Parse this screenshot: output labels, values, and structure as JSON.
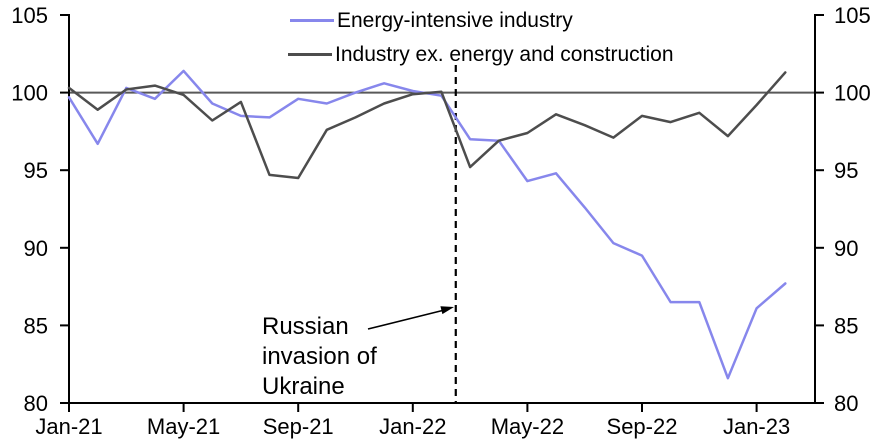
{
  "chart_data": {
    "type": "line",
    "title": "",
    "categories": [
      "Jan-21",
      "Feb-21",
      "Mar-21",
      "Apr-21",
      "May-21",
      "Jun-21",
      "Jul-21",
      "Aug-21",
      "Sep-21",
      "Oct-21",
      "Nov-21",
      "Dec-21",
      "Jan-22",
      "Feb-22",
      "Mar-22",
      "Apr-22",
      "May-22",
      "Jun-22",
      "Jul-22",
      "Aug-22",
      "Sep-22",
      "Oct-22",
      "Nov-22",
      "Dec-22",
      "Jan-23",
      "Feb-23"
    ],
    "series": [
      {
        "name": "Energy-intensive industry",
        "color": "#8787ec",
        "values": [
          99.7,
          96.7,
          100.3,
          99.6,
          101.4,
          99.3,
          98.5,
          98.4,
          99.6,
          99.3,
          100.0,
          100.6,
          100.1,
          99.8,
          97.0,
          96.9,
          94.3,
          94.8,
          92.6,
          90.3,
          89.5,
          86.5,
          86.5,
          81.6,
          86.1,
          87.7
        ]
      },
      {
        "name": "Industry ex. energy and construction",
        "color": "#4d4d4d",
        "values": [
          100.3,
          98.9,
          100.2,
          100.45,
          99.85,
          98.2,
          99.4,
          94.7,
          94.5,
          97.6,
          98.4,
          99.3,
          99.9,
          100.05,
          95.2,
          96.9,
          97.4,
          98.6,
          97.9,
          97.1,
          98.5,
          98.1,
          98.7,
          97.2,
          99.2,
          101.3
        ]
      }
    ],
    "ylim": [
      80,
      105
    ],
    "y_ticks": [
      "80",
      "85",
      "90",
      "95",
      "100",
      "105"
    ],
    "y_tick_values": [
      80,
      85,
      90,
      95,
      100,
      105
    ],
    "x_tick_labels": [
      "Jan-21",
      "May-21",
      "Sep-21",
      "Jan-22",
      "May-22",
      "Sep-22",
      "Jan-23"
    ],
    "x_tick_indices": [
      0,
      4,
      8,
      12,
      16,
      20,
      24
    ],
    "baseline_value": 100,
    "baseline_color": "#595959",
    "event_line_month_index": 13.5,
    "event_line_style": "dashed",
    "axis_color": "#000000",
    "grid": false,
    "legend_position": "top-center",
    "annotation": {
      "lines": [
        "Russian",
        "invasion of",
        "Ukraine"
      ],
      "arrow": "points-to-event-line"
    }
  }
}
